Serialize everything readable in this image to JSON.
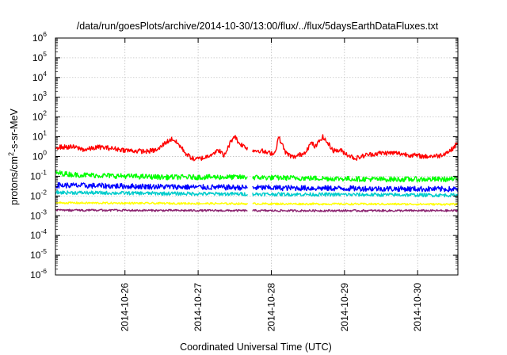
{
  "chart_data": {
    "type": "line",
    "title": "/data/run/goesPlots/archive/2014-10-30/13:00/flux/../flux/5daysEarthDataFluxes.txt",
    "xlabel": "Coordinated Universal Time (UTC)",
    "ylabel": "protons/cm2-s-sr-MeV",
    "ylabel_parts": {
      "base": "protons/cm",
      "sup": "2",
      "rest": "-s-sr-MeV"
    },
    "y_scale": "log",
    "ylim": [
      1e-06,
      1000000.0
    ],
    "y_ticks": [
      {
        "exp": -6,
        "base": "10",
        "sup": "-6"
      },
      {
        "exp": -5,
        "base": "10",
        "sup": "-5"
      },
      {
        "exp": -4,
        "base": "10",
        "sup": "-4"
      },
      {
        "exp": -3,
        "base": "10",
        "sup": "-3"
      },
      {
        "exp": -2,
        "base": "10",
        "sup": "-2"
      },
      {
        "exp": -1,
        "base": "10",
        "sup": "-1"
      },
      {
        "exp": 0,
        "base": "10",
        "sup": "0"
      },
      {
        "exp": 1,
        "base": "10",
        "sup": "1"
      },
      {
        "exp": 2,
        "base": "10",
        "sup": "2"
      },
      {
        "exp": 3,
        "base": "10",
        "sup": "3"
      },
      {
        "exp": 4,
        "base": "10",
        "sup": "4"
      },
      {
        "exp": 5,
        "base": "10",
        "sup": "5"
      },
      {
        "exp": 6,
        "base": "10",
        "sup": "6"
      }
    ],
    "x_range_days": [
      -0.95,
      4.55
    ],
    "x_ticks": [
      {
        "label": "2014-10-26",
        "day": 0
      },
      {
        "label": "2014-10-27",
        "day": 1
      },
      {
        "label": "2014-10-28",
        "day": 2
      },
      {
        "label": "2014-10-29",
        "day": 3
      },
      {
        "label": "2014-10-30",
        "day": 4
      }
    ],
    "grid": true,
    "data_gap_days": [
      1.68,
      1.74
    ],
    "series": [
      {
        "color": "#ff0000",
        "noise_decades": 0.12,
        "points": [
          [
            -0.95,
            3.0
          ],
          [
            -0.7,
            3.0
          ],
          [
            -0.55,
            2.2
          ],
          [
            -0.35,
            3.0
          ],
          [
            -0.15,
            2.5
          ],
          [
            0.05,
            2.0
          ],
          [
            0.3,
            1.8
          ],
          [
            0.45,
            2.2
          ],
          [
            0.55,
            5.0
          ],
          [
            0.65,
            8.0
          ],
          [
            0.75,
            3.5
          ],
          [
            0.85,
            1.2
          ],
          [
            0.95,
            0.7
          ],
          [
            1.1,
            0.9
          ],
          [
            1.2,
            1.5
          ],
          [
            1.3,
            2.0
          ],
          [
            1.35,
            1.0
          ],
          [
            1.45,
            6.0
          ],
          [
            1.5,
            12.0
          ],
          [
            1.55,
            5.0
          ],
          [
            1.65,
            3.0
          ],
          [
            1.75,
            2.0
          ],
          [
            1.85,
            2.0
          ],
          [
            1.95,
            1.5
          ],
          [
            2.05,
            1.5
          ],
          [
            2.1,
            10.0
          ],
          [
            2.2,
            1.5
          ],
          [
            2.3,
            0.9
          ],
          [
            2.45,
            1.5
          ],
          [
            2.55,
            5.0
          ],
          [
            2.6,
            3.0
          ],
          [
            2.7,
            10.0
          ],
          [
            2.75,
            6.0
          ],
          [
            2.85,
            2.0
          ],
          [
            2.95,
            2.0
          ],
          [
            3.05,
            1.2
          ],
          [
            3.15,
            0.8
          ],
          [
            3.3,
            1.2
          ],
          [
            3.5,
            1.5
          ],
          [
            3.7,
            1.5
          ],
          [
            3.9,
            1.2
          ],
          [
            4.1,
            1.0
          ],
          [
            4.3,
            1.1
          ],
          [
            4.45,
            2.0
          ],
          [
            4.55,
            5.0
          ]
        ]
      },
      {
        "color": "#00ff00",
        "noise_decades": 0.13,
        "points": [
          [
            -0.95,
            0.15
          ],
          [
            -0.7,
            0.12
          ],
          [
            0.5,
            0.09
          ],
          [
            1.5,
            0.09
          ],
          [
            2.5,
            0.08
          ],
          [
            3.5,
            0.07
          ],
          [
            4.55,
            0.07
          ]
        ]
      },
      {
        "color": "#0000ff",
        "noise_decades": 0.14,
        "points": [
          [
            -0.95,
            0.035
          ],
          [
            1.0,
            0.028
          ],
          [
            2.5,
            0.025
          ],
          [
            4.55,
            0.022
          ]
        ]
      },
      {
        "color": "#00cccc",
        "noise_decades": 0.09,
        "points": [
          [
            -0.95,
            0.015
          ],
          [
            1.0,
            0.013
          ],
          [
            2.5,
            0.012
          ],
          [
            4.55,
            0.011
          ]
        ]
      },
      {
        "color": "#ffff00",
        "noise_decades": 0.05,
        "points": [
          [
            -0.95,
            0.0045
          ],
          [
            2.0,
            0.004
          ],
          [
            4.55,
            0.0038
          ]
        ]
      },
      {
        "color": "#8b2370",
        "noise_decades": 0.05,
        "points": [
          [
            -0.95,
            0.0019
          ],
          [
            2.0,
            0.0018
          ],
          [
            4.55,
            0.0018
          ]
        ]
      }
    ]
  }
}
